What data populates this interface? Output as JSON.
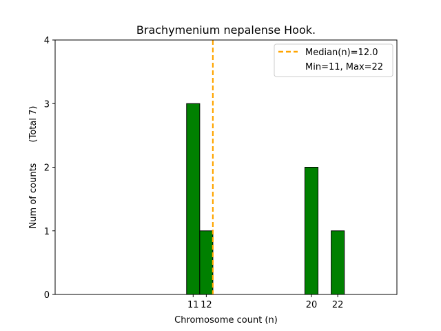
{
  "chart_data": {
    "type": "bar",
    "title": "Brachymenium nepalense Hook.",
    "xlabel": "Chromosome count (n)",
    "ylabel": "Num of counts",
    "ylabel_secondary": "(Total 7)",
    "x": [
      11,
      12,
      20,
      22
    ],
    "values": [
      3,
      1,
      2,
      1
    ],
    "xticks": [
      "11",
      "12",
      "20",
      "22"
    ],
    "yticks": [
      "0",
      "1",
      "2",
      "3",
      "4"
    ],
    "xlim": [
      0,
      26
    ],
    "ylim": [
      0,
      4
    ],
    "bar_color": "#008000",
    "bar_edge_color": "#000000",
    "median": 12.0,
    "median_color": "#FFA500",
    "legend": {
      "placement": "top-right",
      "entries": [
        "Median(n)=12.0",
        "Min=11, Max=22"
      ]
    },
    "grid": false
  }
}
